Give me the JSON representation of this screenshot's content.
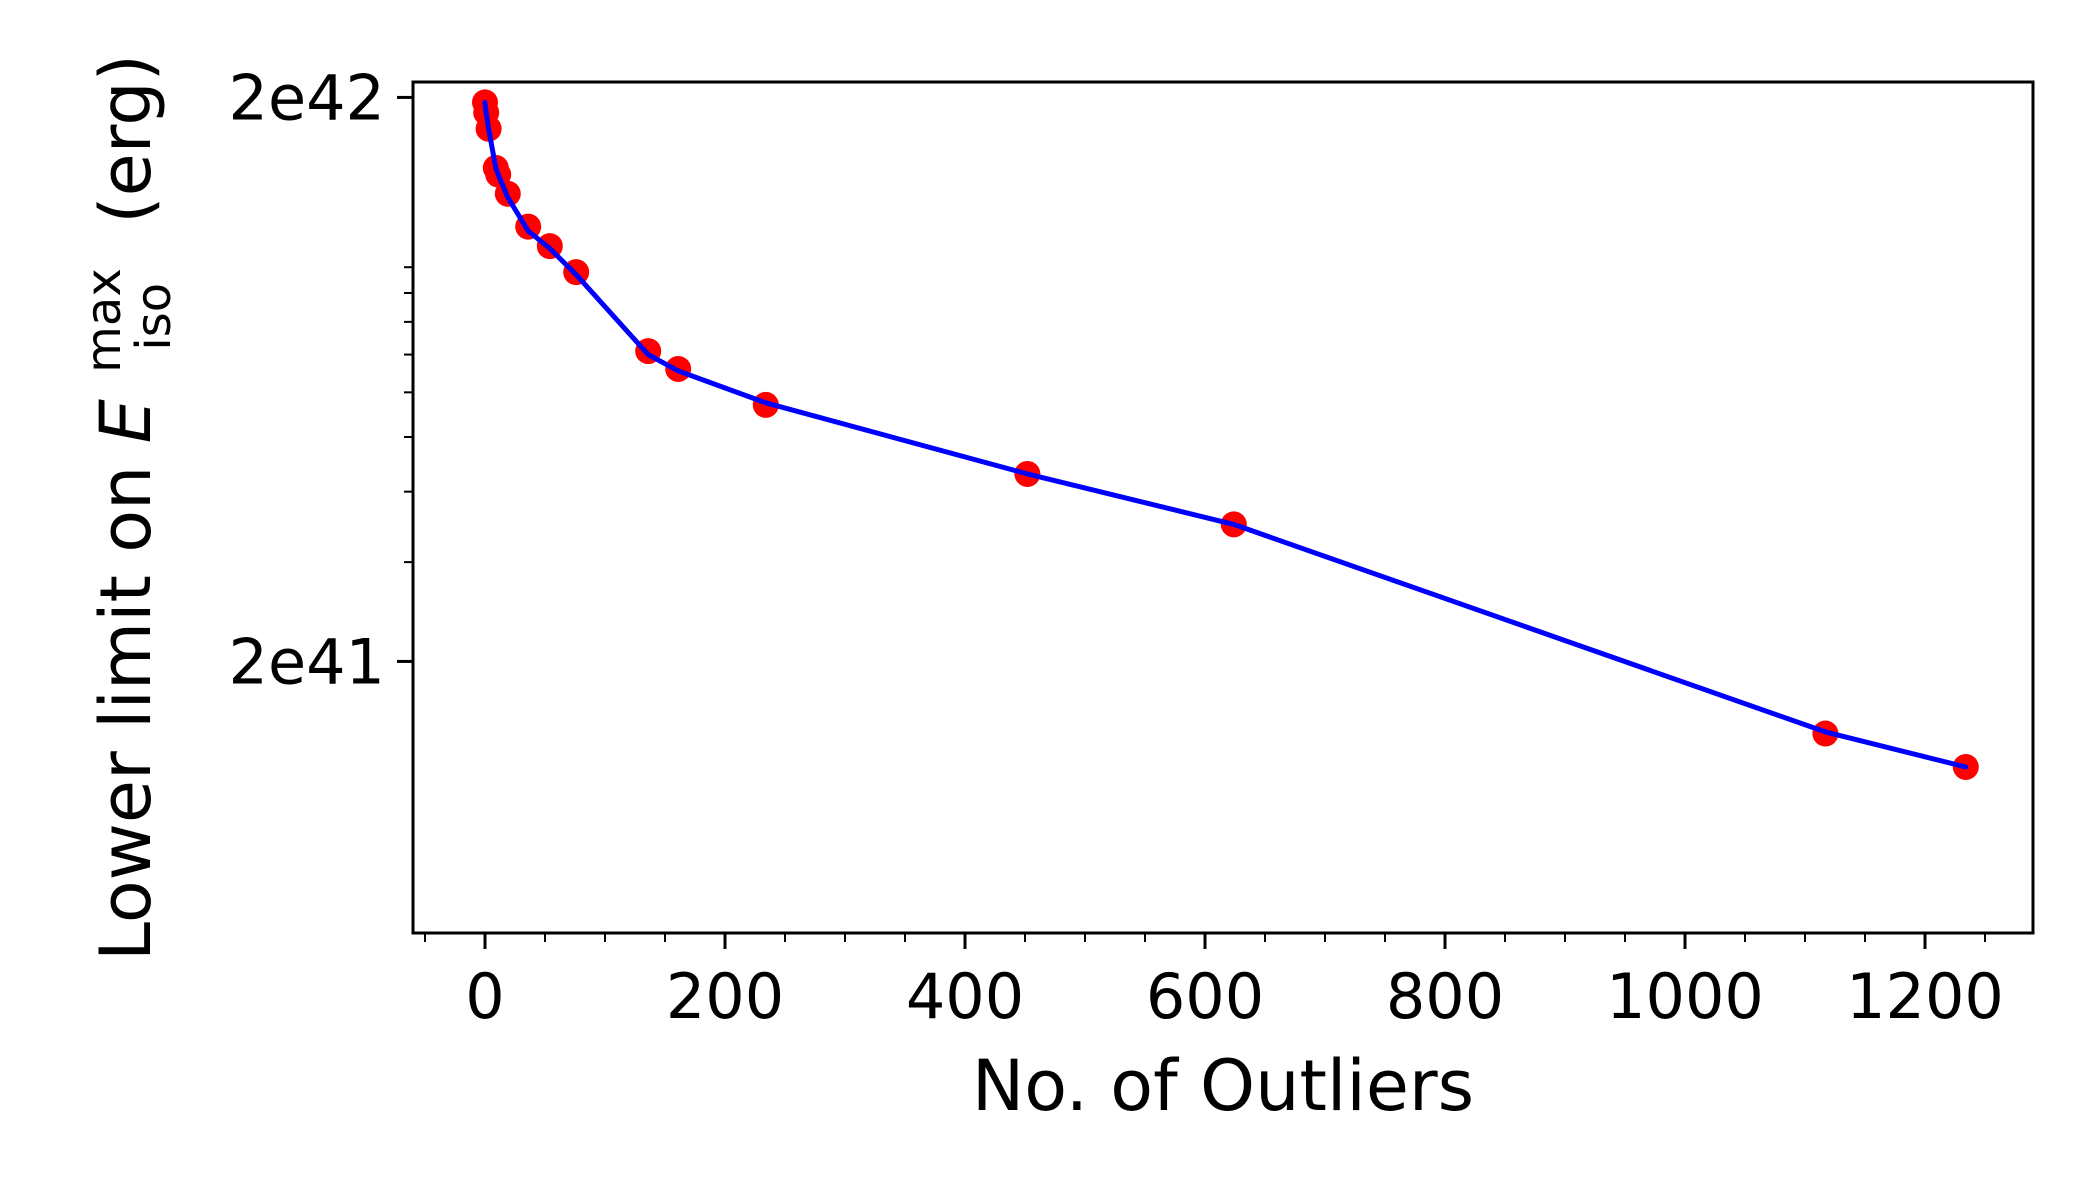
{
  "chart_data": {
    "type": "scatter",
    "xlabel": "No. of Outliers",
    "ylabel": {
      "prefix": "Lower limit on ",
      "symbol": "E",
      "superscript": "max",
      "subscript": "iso",
      "suffix": " (erg)"
    },
    "xlim": [
      -60,
      1290
    ],
    "ylim": [
      6.6e+40,
      2.13e+42
    ],
    "yscale": "log",
    "grid": false,
    "x_ticks": [
      {
        "value": 0,
        "label": "0"
      },
      {
        "value": 200,
        "label": "200"
      },
      {
        "value": 400,
        "label": "400"
      },
      {
        "value": 600,
        "label": "600"
      },
      {
        "value": 800,
        "label": "800"
      },
      {
        "value": 1000,
        "label": "1000"
      },
      {
        "value": 1200,
        "label": "1200"
      }
    ],
    "y_ticks": [
      {
        "value": 2e+41,
        "label": "2e41"
      },
      {
        "value": 2e+42,
        "label": "2e42"
      }
    ],
    "y_minor_ticks": [
      3e+41,
      4e+41,
      5e+41,
      6e+41,
      7e+41,
      8e+41,
      9e+41,
      1e+42
    ],
    "series": [
      {
        "kind": "points",
        "color": "#ff0000",
        "x": [
          0,
          1,
          3,
          9,
          11,
          19,
          36,
          54,
          76,
          136,
          161,
          234,
          452,
          624,
          1117,
          1234
        ],
        "y": [
          1.96e+42,
          1.88e+42,
          1.76e+42,
          1.5e+42,
          1.46e+42,
          1.35e+42,
          1.18e+42,
          1.09e+42,
          9.8e+41,
          7.1e+41,
          6.6e+41,
          5.7e+41,
          4.3e+41,
          3.5e+41,
          1.49e+41,
          1.3e+41
        ]
      },
      {
        "kind": "line",
        "color": "#0000ff",
        "x": [
          0,
          1,
          3,
          9,
          11,
          19,
          36,
          54,
          76,
          136,
          161,
          234,
          452,
          624,
          1117,
          1234
        ],
        "y": [
          1.96e+42,
          1.88e+42,
          1.76e+42,
          1.5e+42,
          1.46e+42,
          1.33e+42,
          1.16e+42,
          1.08e+42,
          9.7e+41,
          7e+41,
          6.55e+41,
          5.75e+41,
          4.3e+41,
          3.5e+41,
          1.5e+41,
          1.3e+41
        ]
      }
    ]
  }
}
